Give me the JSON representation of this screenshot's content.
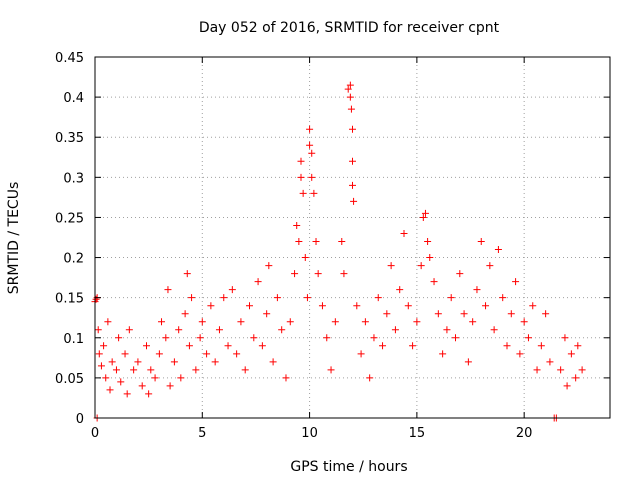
{
  "chart_data": {
    "type": "scatter",
    "title": "Day 052 of 2016, SRMTID for receiver cpnt",
    "xlabel": "GPS time / hours",
    "ylabel": "SRMTID / TECUs",
    "xlim": [
      0,
      24
    ],
    "ylim": [
      0,
      0.45
    ],
    "grid": true,
    "x_ticks": [
      0,
      5,
      10,
      15,
      20
    ],
    "x_tick_labels": [
      "0",
      "5",
      "10",
      "15",
      "20"
    ],
    "y_ticks": [
      0,
      0.05,
      0.1,
      0.15,
      0.2,
      0.25,
      0.3,
      0.35,
      0.4,
      0.45
    ],
    "y_tick_labels": [
      "0",
      "0.05",
      "0.1",
      "0.15",
      "0.2",
      "0.25",
      "0.3",
      "0.35",
      "0.4",
      "0.45"
    ],
    "marker": "+",
    "series": [
      {
        "name": "SRMTID",
        "color": "#ff0000",
        "points": [
          [
            0.0,
            0.145
          ],
          [
            0.05,
            0.148
          ],
          [
            0.1,
            0.15
          ],
          [
            0.1,
            0.0
          ],
          [
            0.15,
            0.11
          ],
          [
            0.2,
            0.08
          ],
          [
            0.3,
            0.065
          ],
          [
            0.4,
            0.09
          ],
          [
            0.5,
            0.05
          ],
          [
            0.6,
            0.12
          ],
          [
            0.7,
            0.035
          ],
          [
            0.8,
            0.07
          ],
          [
            1.0,
            0.06
          ],
          [
            1.1,
            0.1
          ],
          [
            1.2,
            0.045
          ],
          [
            1.4,
            0.08
          ],
          [
            1.5,
            0.03
          ],
          [
            1.6,
            0.11
          ],
          [
            1.8,
            0.06
          ],
          [
            2.0,
            0.07
          ],
          [
            2.2,
            0.04
          ],
          [
            2.4,
            0.09
          ],
          [
            2.5,
            0.03
          ],
          [
            2.6,
            0.06
          ],
          [
            2.8,
            0.05
          ],
          [
            3.0,
            0.08
          ],
          [
            3.1,
            0.12
          ],
          [
            3.3,
            0.1
          ],
          [
            3.4,
            0.16
          ],
          [
            3.5,
            0.04
          ],
          [
            3.7,
            0.07
          ],
          [
            3.9,
            0.11
          ],
          [
            4.0,
            0.05
          ],
          [
            4.2,
            0.13
          ],
          [
            4.3,
            0.18
          ],
          [
            4.4,
            0.09
          ],
          [
            4.5,
            0.15
          ],
          [
            4.7,
            0.06
          ],
          [
            4.9,
            0.1
          ],
          [
            5.0,
            0.12
          ],
          [
            5.2,
            0.08
          ],
          [
            5.4,
            0.14
          ],
          [
            5.6,
            0.07
          ],
          [
            5.8,
            0.11
          ],
          [
            6.0,
            0.15
          ],
          [
            6.2,
            0.09
          ],
          [
            6.4,
            0.16
          ],
          [
            6.6,
            0.08
          ],
          [
            6.8,
            0.12
          ],
          [
            7.0,
            0.06
          ],
          [
            7.2,
            0.14
          ],
          [
            7.4,
            0.1
          ],
          [
            7.6,
            0.17
          ],
          [
            7.8,
            0.09
          ],
          [
            8.0,
            0.13
          ],
          [
            8.1,
            0.19
          ],
          [
            8.3,
            0.07
          ],
          [
            8.5,
            0.15
          ],
          [
            8.7,
            0.11
          ],
          [
            8.9,
            0.05
          ],
          [
            9.1,
            0.12
          ],
          [
            9.3,
            0.18
          ],
          [
            9.4,
            0.24
          ],
          [
            9.5,
            0.22
          ],
          [
            9.6,
            0.3
          ],
          [
            9.6,
            0.32
          ],
          [
            9.7,
            0.28
          ],
          [
            9.8,
            0.2
          ],
          [
            9.9,
            0.15
          ],
          [
            10.0,
            0.34
          ],
          [
            10.0,
            0.36
          ],
          [
            10.1,
            0.33
          ],
          [
            10.1,
            0.3
          ],
          [
            10.2,
            0.28
          ],
          [
            10.3,
            0.22
          ],
          [
            10.4,
            0.18
          ],
          [
            10.6,
            0.14
          ],
          [
            10.8,
            0.1
          ],
          [
            11.0,
            0.06
          ],
          [
            11.2,
            0.12
          ],
          [
            11.5,
            0.22
          ],
          [
            11.6,
            0.18
          ],
          [
            11.8,
            0.41
          ],
          [
            11.9,
            0.415
          ],
          [
            11.9,
            0.4
          ],
          [
            11.95,
            0.385
          ],
          [
            12.0,
            0.36
          ],
          [
            12.0,
            0.32
          ],
          [
            12.0,
            0.29
          ],
          [
            12.05,
            0.27
          ],
          [
            12.2,
            0.14
          ],
          [
            12.4,
            0.08
          ],
          [
            12.6,
            0.12
          ],
          [
            12.8,
            0.05
          ],
          [
            13.0,
            0.1
          ],
          [
            13.2,
            0.15
          ],
          [
            13.4,
            0.09
          ],
          [
            13.6,
            0.13
          ],
          [
            13.8,
            0.19
          ],
          [
            14.0,
            0.11
          ],
          [
            14.2,
            0.16
          ],
          [
            14.4,
            0.23
          ],
          [
            14.6,
            0.14
          ],
          [
            14.8,
            0.09
          ],
          [
            15.0,
            0.12
          ],
          [
            15.2,
            0.19
          ],
          [
            15.3,
            0.25
          ],
          [
            15.4,
            0.255
          ],
          [
            15.5,
            0.22
          ],
          [
            15.6,
            0.2
          ],
          [
            15.8,
            0.17
          ],
          [
            16.0,
            0.13
          ],
          [
            16.2,
            0.08
          ],
          [
            16.4,
            0.11
          ],
          [
            16.6,
            0.15
          ],
          [
            16.8,
            0.1
          ],
          [
            17.0,
            0.18
          ],
          [
            17.2,
            0.13
          ],
          [
            17.4,
            0.07
          ],
          [
            17.6,
            0.12
          ],
          [
            17.8,
            0.16
          ],
          [
            18.0,
            0.22
          ],
          [
            18.2,
            0.14
          ],
          [
            18.4,
            0.19
          ],
          [
            18.6,
            0.11
          ],
          [
            18.8,
            0.21
          ],
          [
            19.0,
            0.15
          ],
          [
            19.2,
            0.09
          ],
          [
            19.4,
            0.13
          ],
          [
            19.6,
            0.17
          ],
          [
            19.8,
            0.08
          ],
          [
            20.0,
            0.12
          ],
          [
            20.2,
            0.1
          ],
          [
            20.4,
            0.14
          ],
          [
            20.6,
            0.06
          ],
          [
            20.8,
            0.09
          ],
          [
            21.0,
            0.13
          ],
          [
            21.2,
            0.07
          ],
          [
            21.4,
            0.0
          ],
          [
            21.5,
            0.0
          ],
          [
            21.7,
            0.06
          ],
          [
            21.9,
            0.1
          ],
          [
            22.0,
            0.04
          ],
          [
            22.2,
            0.08
          ],
          [
            22.4,
            0.05
          ],
          [
            22.5,
            0.09
          ],
          [
            22.7,
            0.06
          ]
        ]
      }
    ]
  }
}
